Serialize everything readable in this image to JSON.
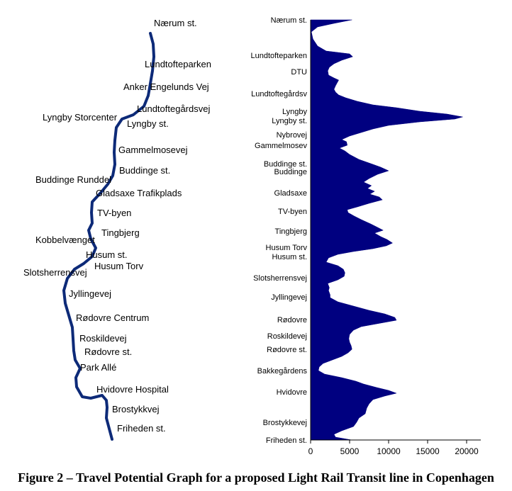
{
  "caption": "Figure 2 – Travel Potential Graph for a proposed Light Rail Transit line in Copenhagen",
  "map": {
    "line_color": "#0d2a78",
    "stations": [
      "Nærum st.",
      "Lundtofteparken",
      "Anker Engelunds Vej",
      "Lundtoftegårdsvej",
      "Lyngby Storcenter",
      "Lyngby st.",
      "Gammelmosevej",
      "Buddinge st.",
      "Buddinge Runddel",
      "Gladsaxe Trafikplads",
      "TV-byen",
      "Tingbjerg",
      "Kobbelvænget",
      "Husum st.",
      "Husum Torv",
      "Slotsherrensvej",
      "Jyllingevej",
      "Rødovre Centrum",
      "Roskildevej",
      "Rødovre st.",
      "Park Allé",
      "Hvidovre Hospital",
      "Brostykkvej",
      "Friheden st."
    ]
  },
  "chart_data": {
    "type": "area",
    "orientation": "horizontal",
    "fill_color": "#000080",
    "categories": [
      "Nærum st.",
      "Lundtofteparken",
      "DTU",
      "Lundtoftegårdsv",
      "Lyngby",
      "Lyngby st.",
      "Nybrovej",
      "Gammelmosev",
      "Buddinge st.",
      "Buddinge",
      "Gladsaxe",
      "TV-byen",
      "Tingbjerg",
      "Husum Torv",
      "Husum st.",
      "Slotsherrensvej",
      "Jyllingevej",
      "Rødovre",
      "Roskildevej",
      "Rødovre st.",
      "Bakkegårdens",
      "Hvidovre",
      "Brostykkevej",
      "Friheden st."
    ],
    "category_y": [
      28,
      78,
      101,
      132,
      157,
      170,
      190,
      205,
      231,
      242,
      272,
      298,
      326,
      349,
      362,
      392,
      419,
      451,
      474,
      493,
      523,
      553,
      596,
      621
    ],
    "x_ticks": [
      0,
      5000,
      10000,
      15000,
      20000
    ],
    "xlim": [
      0,
      22000
    ],
    "profile": [
      [
        28,
        5300
      ],
      [
        33,
        3000
      ],
      [
        38,
        900
      ],
      [
        45,
        100
      ],
      [
        55,
        300
      ],
      [
        65,
        900
      ],
      [
        72,
        2000
      ],
      [
        76,
        5000
      ],
      [
        80,
        5400
      ],
      [
        85,
        4000
      ],
      [
        90,
        3000
      ],
      [
        95,
        2400
      ],
      [
        100,
        2200
      ],
      [
        106,
        2300
      ],
      [
        110,
        3000
      ],
      [
        113,
        3600
      ],
      [
        117,
        3400
      ],
      [
        121,
        3200
      ],
      [
        126,
        3000
      ],
      [
        130,
        3200
      ],
      [
        134,
        3600
      ],
      [
        138,
        4500
      ],
      [
        143,
        6000
      ],
      [
        148,
        8000
      ],
      [
        152,
        11000
      ],
      [
        157,
        14000
      ],
      [
        161,
        17500
      ],
      [
        165,
        19500
      ],
      [
        168,
        18500
      ],
      [
        172,
        14000
      ],
      [
        177,
        10000
      ],
      [
        182,
        8000
      ],
      [
        187,
        6500
      ],
      [
        192,
        5000
      ],
      [
        197,
        4000
      ],
      [
        200,
        4600
      ],
      [
        205,
        4700
      ],
      [
        209,
        3700
      ],
      [
        213,
        4400
      ],
      [
        218,
        5000
      ],
      [
        225,
        6200
      ],
      [
        232,
        8000
      ],
      [
        236,
        9000
      ],
      [
        241,
        10000
      ],
      [
        246,
        8600
      ],
      [
        252,
        7500
      ],
      [
        257,
        6800
      ],
      [
        262,
        7800
      ],
      [
        266,
        7300
      ],
      [
        270,
        8200
      ],
      [
        274,
        7600
      ],
      [
        278,
        8800
      ],
      [
        282,
        9200
      ],
      [
        287,
        7500
      ],
      [
        292,
        6000
      ],
      [
        296,
        4700
      ],
      [
        300,
        4800
      ],
      [
        305,
        5600
      ],
      [
        310,
        6500
      ],
      [
        316,
        7700
      ],
      [
        321,
        8600
      ],
      [
        325,
        9300
      ],
      [
        329,
        8200
      ],
      [
        334,
        9000
      ],
      [
        338,
        9800
      ],
      [
        343,
        10500
      ],
      [
        347,
        9700
      ],
      [
        351,
        8000
      ],
      [
        355,
        5500
      ],
      [
        359,
        3500
      ],
      [
        364,
        2300
      ],
      [
        370,
        2000
      ],
      [
        375,
        3500
      ],
      [
        380,
        4200
      ],
      [
        385,
        4400
      ],
      [
        390,
        4300
      ],
      [
        395,
        3500
      ],
      [
        400,
        2200
      ],
      [
        406,
        2400
      ],
      [
        410,
        2300
      ],
      [
        416,
        2500
      ],
      [
        420,
        2500
      ],
      [
        426,
        3500
      ],
      [
        432,
        5500
      ],
      [
        438,
        7500
      ],
      [
        443,
        9500
      ],
      [
        448,
        10800
      ],
      [
        452,
        11000
      ],
      [
        456,
        9000
      ],
      [
        461,
        6500
      ],
      [
        466,
        5500
      ],
      [
        472,
        5000
      ],
      [
        478,
        4900
      ],
      [
        483,
        5000
      ],
      [
        488,
        5200
      ],
      [
        493,
        5300
      ],
      [
        498,
        4800
      ],
      [
        503,
        4000
      ],
      [
        508,
        2800
      ],
      [
        513,
        1600
      ],
      [
        518,
        1100
      ],
      [
        523,
        1000
      ],
      [
        528,
        1800
      ],
      [
        533,
        4000
      ],
      [
        538,
        5800
      ],
      [
        542,
        6800
      ],
      [
        547,
        8500
      ],
      [
        551,
        10000
      ],
      [
        555,
        11000
      ],
      [
        559,
        9500
      ],
      [
        564,
        8000
      ],
      [
        570,
        7500
      ],
      [
        576,
        7200
      ],
      [
        584,
        7000
      ],
      [
        590,
        6200
      ],
      [
        596,
        5900
      ],
      [
        602,
        5500
      ],
      [
        608,
        4000
      ],
      [
        613,
        3000
      ],
      [
        617,
        3200
      ],
      [
        621,
        5300
      ]
    ]
  }
}
